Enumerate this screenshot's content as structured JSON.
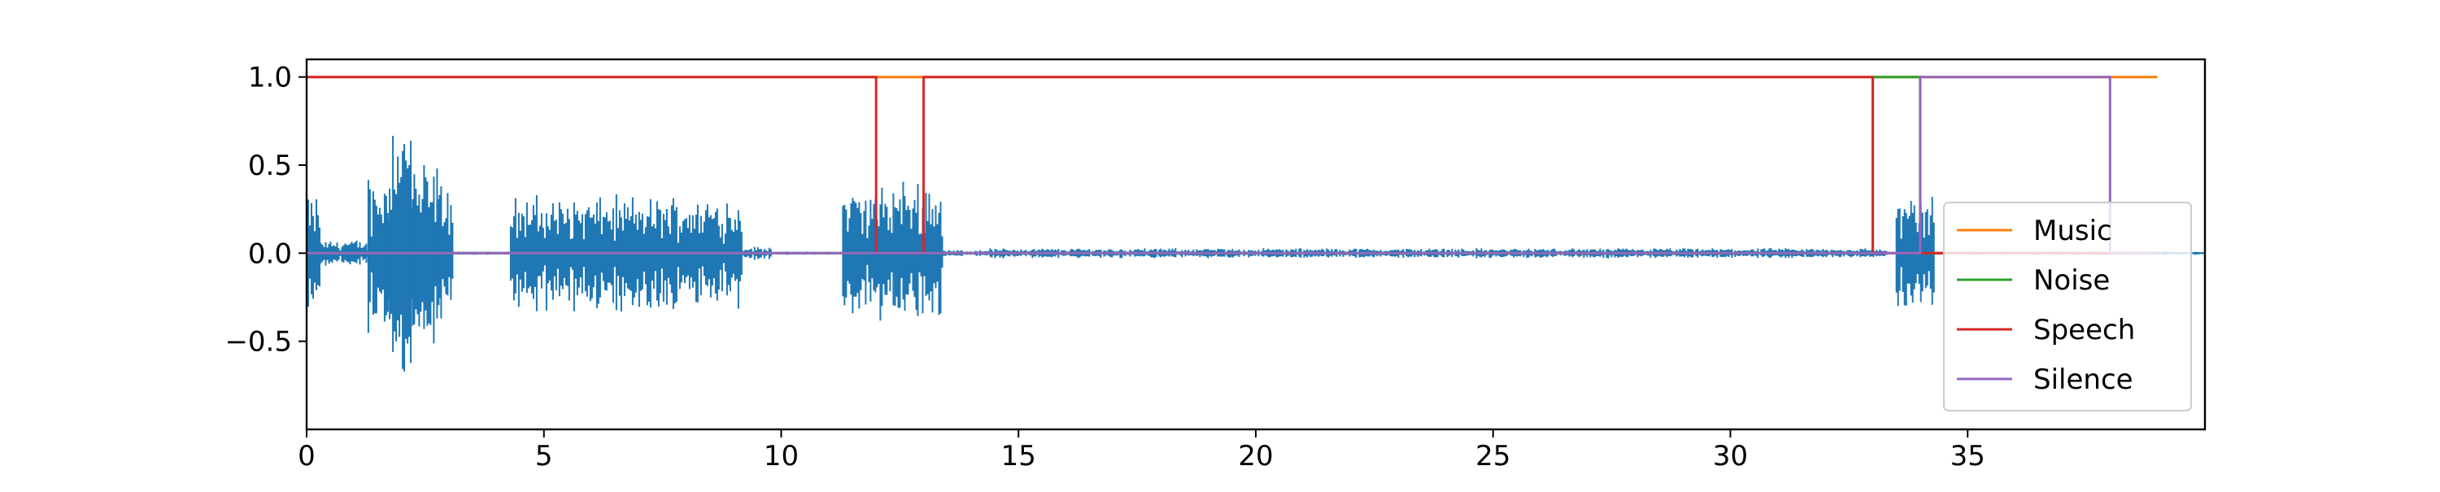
{
  "chart_data": {
    "type": "line",
    "title": "",
    "xlabel": "",
    "ylabel": "",
    "xlim": [
      0,
      40
    ],
    "ylim": [
      -1.0,
      1.1
    ],
    "xticks": [
      0,
      5,
      10,
      15,
      20,
      25,
      30,
      35
    ],
    "yticks": [
      -0.5,
      0.0,
      0.5,
      1.0
    ],
    "grid": false,
    "legend_position": "lower-right",
    "waveform": {
      "color": "#1f77b4",
      "segments": [
        {
          "start": 0.0,
          "end": 0.3,
          "amp": 0.35
        },
        {
          "start": 0.3,
          "end": 1.3,
          "amp": 0.08
        },
        {
          "start": 1.3,
          "end": 1.75,
          "amp": 0.5
        },
        {
          "start": 1.75,
          "end": 2.2,
          "amp": 0.9
        },
        {
          "start": 2.2,
          "end": 2.8,
          "amp": 0.55
        },
        {
          "start": 2.8,
          "end": 3.1,
          "amp": 0.45
        },
        {
          "start": 3.1,
          "end": 4.3,
          "amp": 0.01
        },
        {
          "start": 4.3,
          "end": 9.2,
          "amp": 0.35
        },
        {
          "start": 9.2,
          "end": 9.8,
          "amp": 0.04
        },
        {
          "start": 9.8,
          "end": 11.3,
          "amp": 0.01
        },
        {
          "start": 11.3,
          "end": 12.4,
          "amp": 0.4
        },
        {
          "start": 12.4,
          "end": 13.4,
          "amp": 0.45
        },
        {
          "start": 13.4,
          "end": 14.3,
          "amp": 0.02
        },
        {
          "start": 14.3,
          "end": 33.3,
          "amp": 0.03
        },
        {
          "start": 33.3,
          "end": 33.5,
          "amp": 0.0
        },
        {
          "start": 33.5,
          "end": 34.3,
          "amp": 0.35
        },
        {
          "start": 34.3,
          "end": 40.0,
          "amp": 0.01
        }
      ]
    },
    "series": [
      {
        "name": "Music",
        "color": "#ff7f0e",
        "x": [
          0,
          12,
          12,
          13,
          13,
          33,
          33,
          34,
          34,
          38,
          38,
          39
        ],
        "y": [
          1,
          1,
          1,
          1,
          1,
          1,
          1,
          1,
          1,
          1,
          1,
          1
        ]
      },
      {
        "name": "Noise",
        "color": "#2ca02c",
        "x": [
          0,
          33,
          33,
          34,
          34,
          39
        ],
        "y": [
          0,
          0,
          1,
          1,
          0,
          0
        ]
      },
      {
        "name": "Speech",
        "color": "#d62728",
        "x": [
          0,
          12,
          12,
          13,
          13,
          33,
          33,
          39
        ],
        "y": [
          1,
          1,
          0,
          0,
          1,
          1,
          0,
          0
        ]
      },
      {
        "name": "Silence",
        "color": "#9467bd",
        "x": [
          0,
          34,
          34,
          38,
          38,
          39
        ],
        "y": [
          0,
          0,
          1,
          1,
          0,
          0
        ]
      }
    ]
  }
}
